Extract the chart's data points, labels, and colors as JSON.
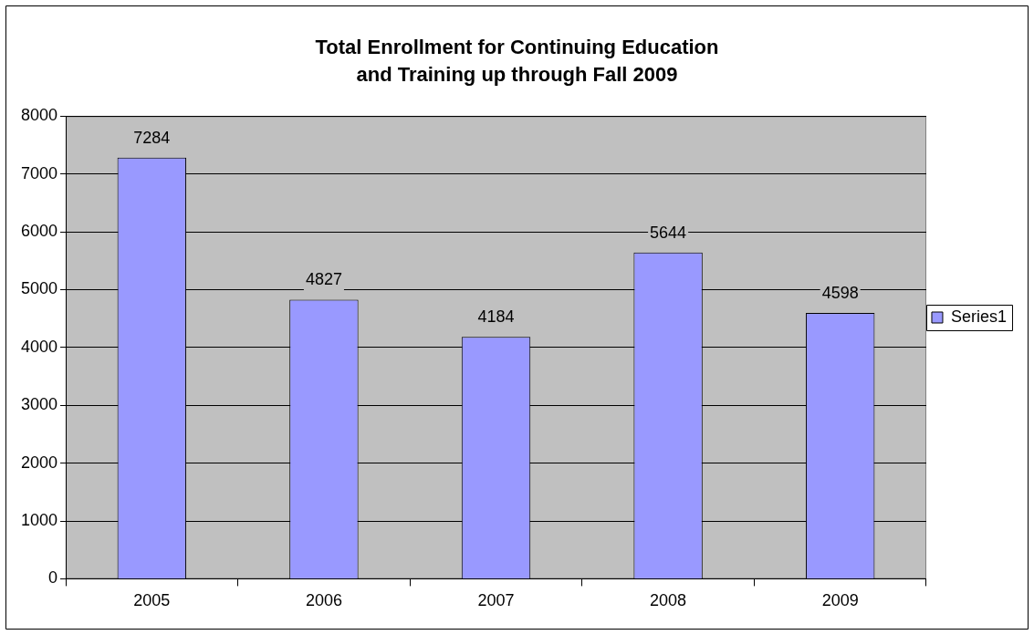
{
  "chart_data": {
    "type": "bar",
    "title": "Total Enrollment for Continuing Education\nand Training up through Fall 2009",
    "categories": [
      "2005",
      "2006",
      "2007",
      "2008",
      "2009"
    ],
    "series": [
      {
        "name": "Series1",
        "color": "#9999ff",
        "values": [
          7284,
          4827,
          4184,
          5644,
          4598
        ]
      }
    ],
    "ylim": [
      0,
      8000
    ],
    "yticks": [
      0,
      1000,
      2000,
      3000,
      4000,
      5000,
      6000,
      7000,
      8000
    ],
    "grid": "y",
    "legend": "right",
    "data_labels": true
  }
}
